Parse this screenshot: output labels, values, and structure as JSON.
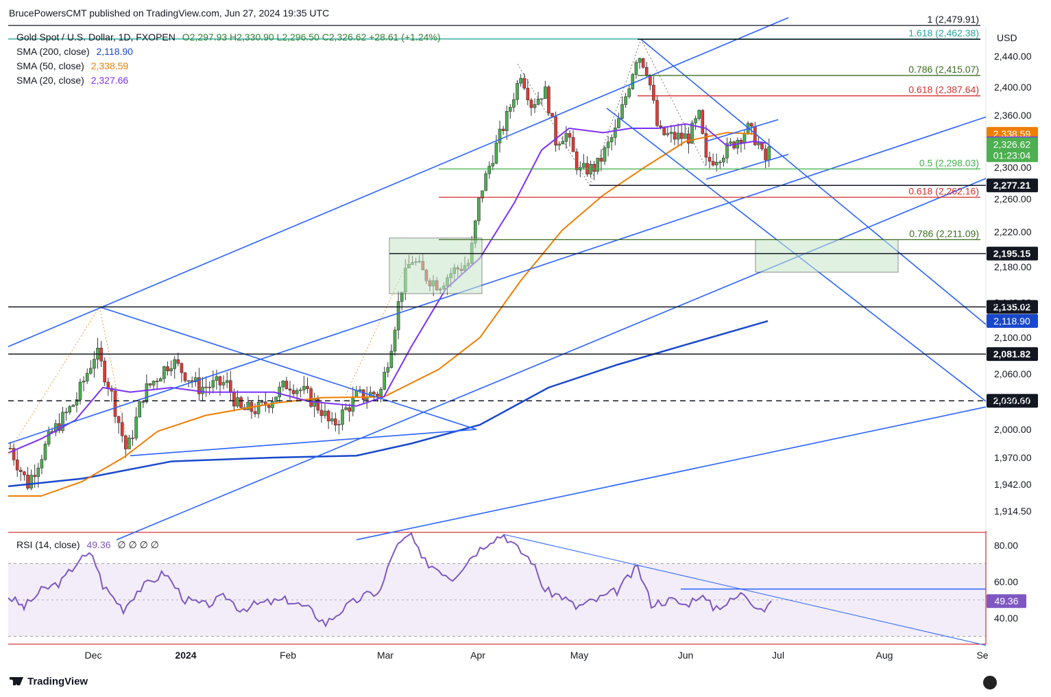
{
  "header": {
    "published": "BrucePowersCMT published on TradingView.com, Jun 27, 2024 19:35 UTC",
    "branding": "TradingView"
  },
  "legend": {
    "symbol": "Gold Spot / U.S. Dollar, 1D, FXOPEN",
    "ohlc": "O2,297.93  H2,330.90  L2,296.50  C2,326.62  +28.61 (+1.24%)",
    "sma200_label": "SMA (200, close)",
    "sma200_value": "2,118.90",
    "sma50_label": "SMA (50, close)",
    "sma50_value": "2,338.59",
    "sma20_label": "SMA (20, close)",
    "sma20_value": "2,327.66",
    "rsi_label": "RSI (14, close)",
    "rsi_value": "49.36",
    "rsi_extra": "∅ ∅ ∅ ∅"
  },
  "currency": "USD",
  "colors": {
    "up": "#4caf50",
    "down": "#e53935",
    "sma20": "#7b2ff7",
    "sma50": "#ef7d00",
    "sma200": "#1848cc",
    "trend": "#2962ff",
    "green": "#3fae49",
    "red": "#d32f2f",
    "dkgreen": "#3a6b1f",
    "rsi": "#7e57c2"
  },
  "chart_data": {
    "type": "candlestick",
    "price_range": [
      1895,
      2490
    ],
    "x_axis": [
      "Dec",
      "2024",
      "Feb",
      "Mar",
      "Apr",
      "May",
      "Jun",
      "Jul",
      "Aug",
      "Se"
    ],
    "y_ticks": [
      "2,440.00",
      "2,400.00",
      "2,360.00",
      "2,300.00",
      "2,260.00",
      "2,220.00",
      "2,180.00",
      "2,140.00",
      "2,100.00",
      "2,060.00",
      "2,030.00",
      "2,000.00",
      "1,970.00",
      "1,942.00",
      "1,914.50"
    ],
    "y_ticks_numeric": [
      2440,
      2400,
      2360,
      2300,
      2260,
      2220,
      2180,
      2140,
      2100,
      2060,
      2030,
      2000,
      1970,
      1942,
      1914.5
    ],
    "fib_levels": [
      {
        "label": "1 (2,479.91)",
        "price": 2479.91,
        "color": "#131722",
        "style": "solid"
      },
      {
        "label": "1.618 (2,462.38)",
        "price": 2462.38,
        "color": "#26a69a",
        "style": "solid"
      },
      {
        "label": "0.786 (2,415.07)",
        "price": 2415.07,
        "color": "#3a6b1f",
        "style": "solid"
      },
      {
        "label": "0.618 (2,387.64)",
        "price": 2387.64,
        "color": "#d32f2f",
        "style": "solid"
      },
      {
        "label": "0.5 (2,298.03)",
        "price": 2298.03,
        "color": "#3fae49",
        "style": "solid"
      },
      {
        "label": "0.618 (2,262.16)",
        "price": 2262.16,
        "color": "#d32f2f",
        "style": "solid"
      },
      {
        "label": "0.786 (2,211.09)",
        "price": 2211.09,
        "color": "#3a6b1f",
        "style": "solid"
      }
    ],
    "horizontal_levels": [
      {
        "label": "2,277.21",
        "price": 2277.21
      },
      {
        "label": "2,195.15",
        "price": 2195.15
      },
      {
        "label": "2,135.02",
        "price": 2135.02
      },
      {
        "label": "2,081.82",
        "price": 2081.82
      },
      {
        "label": "2,030.60",
        "price": 2030.6,
        "dashed": true
      }
    ],
    "price_tags": [
      {
        "label": "2,338.59",
        "price": 2338.59,
        "bg": "#ef7d00",
        "fg": "#ffffff"
      },
      {
        "label": "2,327.66",
        "price": 2327.66,
        "bg": "#7b2ff7",
        "fg": "#ffffff"
      },
      {
        "label": "2,326.62",
        "price": 2326.62,
        "bg": "#4caf50",
        "fg": "#ffffff",
        "sub": "01:23:04"
      },
      {
        "label": "2,118.90",
        "price": 2118.9,
        "bg": "#1848cc",
        "fg": "#ffffff"
      }
    ],
    "rsi": {
      "range": [
        25,
        90
      ],
      "band": [
        30,
        70
      ],
      "ticks": [
        "80.00",
        "60.00",
        "40.00"
      ],
      "ticks_numeric": [
        80,
        60,
        40
      ],
      "last": 49.36,
      "resistance": 56
    }
  }
}
